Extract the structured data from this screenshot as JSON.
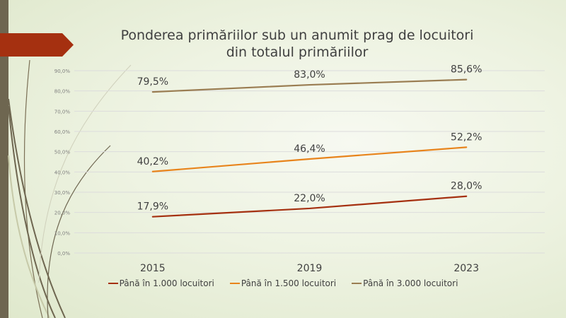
{
  "slide": {
    "accent": "#a53010",
    "bar_color": "#6e6650"
  },
  "chart_data": {
    "type": "line",
    "title": "Ponderea primăriilor sub un anumit prag de locuitori din totalul primăriilor",
    "title_lines": [
      "Ponderea primăriilor sub un anumit prag de locuitori",
      "din totalul primăriilor"
    ],
    "categories": [
      "2015",
      "2019",
      "2023"
    ],
    "ylim": [
      0,
      90
    ],
    "yticks": [
      "0,0%",
      "10,0%",
      "20,0%",
      "30,0%",
      "40,0%",
      "50,0%",
      "60,0%",
      "70,0%",
      "80,0%",
      "90,0%"
    ],
    "grid": true,
    "legend_position": "bottom",
    "series": [
      {
        "name": "Până în 1.000 locuitori",
        "color": "#a53010",
        "values": [
          17.9,
          22.0,
          28.0
        ],
        "labels": [
          "17,9%",
          "22,0%",
          "28,0%"
        ]
      },
      {
        "name": "Până în 1.500 locuitori",
        "color": "#e8841c",
        "values": [
          40.2,
          46.4,
          52.2
        ],
        "labels": [
          "40,2%",
          "46,4%",
          "52,2%"
        ]
      },
      {
        "name": "Până în 3.000 locuitori",
        "color": "#9a7d52",
        "values": [
          79.5,
          83.0,
          85.6
        ],
        "labels": [
          "79,5%",
          "83,0%",
          "85,6%"
        ]
      }
    ]
  }
}
